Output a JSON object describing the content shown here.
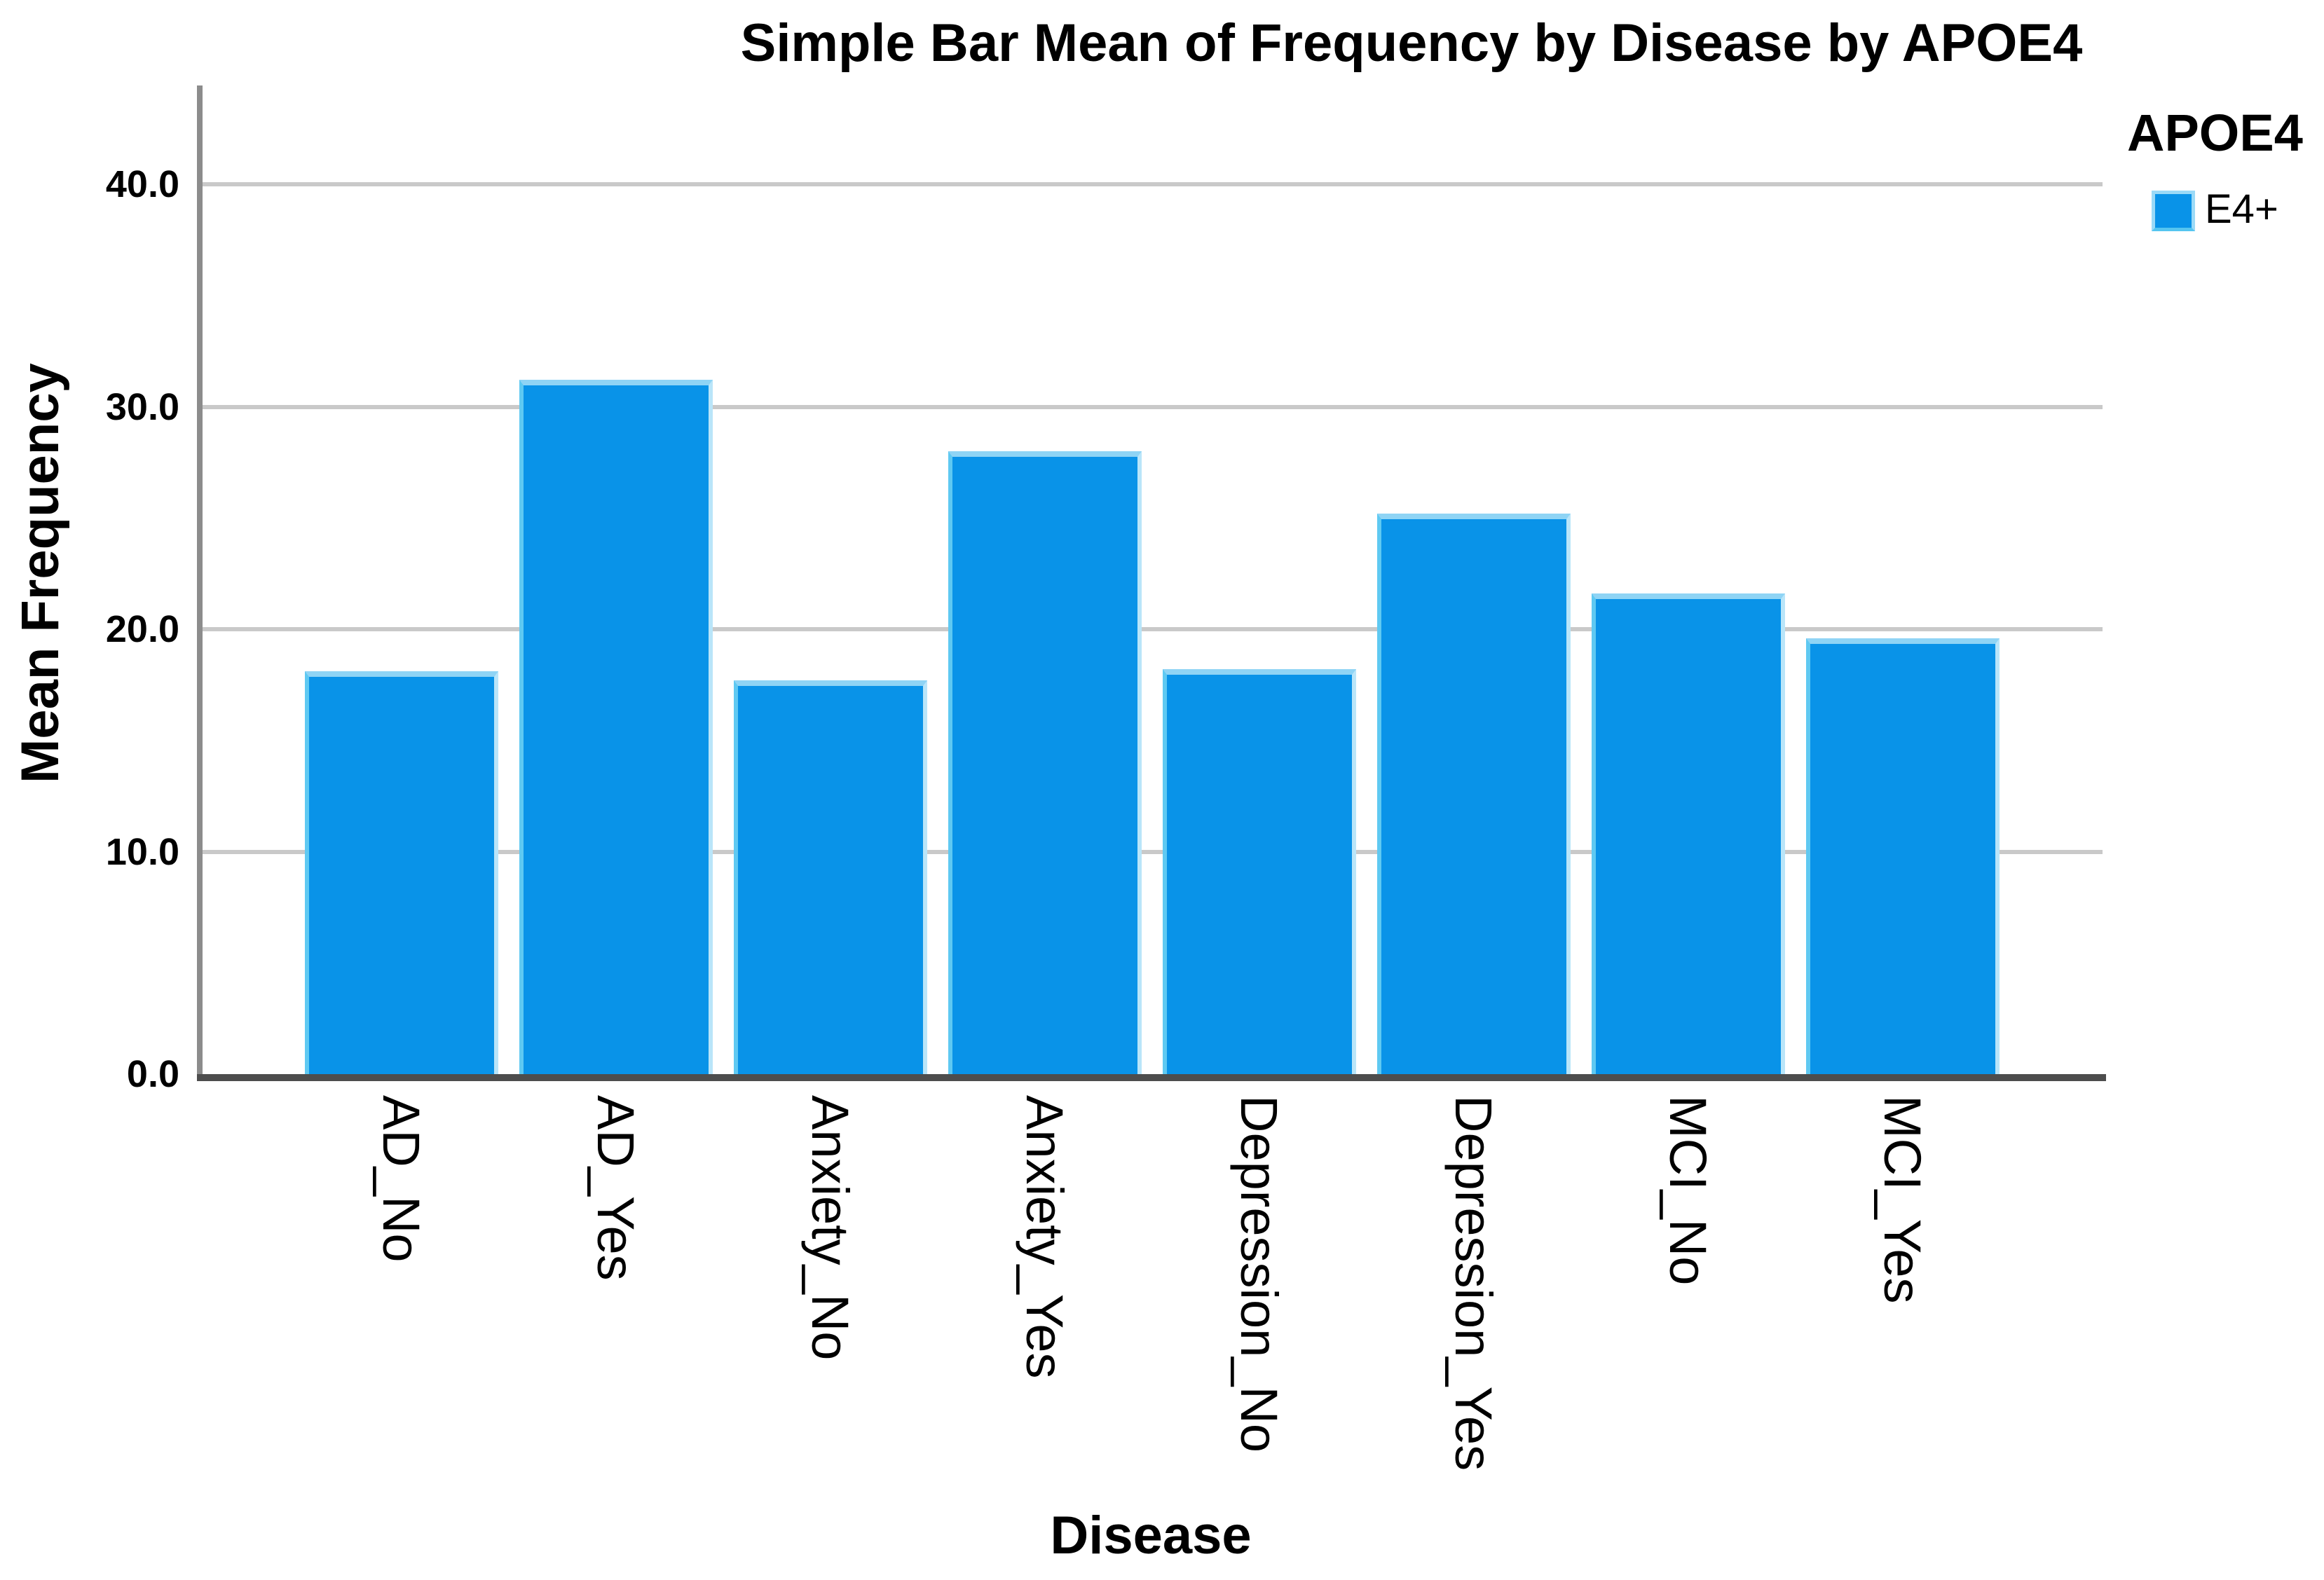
{
  "title": "Simple Bar Mean of Frequency by Disease by APOE4",
  "axes": {
    "x_label": "Disease",
    "y_label": "Mean Frequency",
    "y_tick_labels": [
      "0.0",
      "10.0",
      "20.0",
      "30.0",
      "40.0"
    ]
  },
  "legend": {
    "title": "APOE4",
    "items": [
      {
        "label": "E4+",
        "color": "#0993e8"
      }
    ]
  },
  "colors": {
    "bar_fill": "#0993e8",
    "bar_top_edge": "#8fd4f5",
    "bar_left_edge": "#5fc9f2",
    "bar_right_edge": "#b9e5f9",
    "bar_bottom_edge": "#0a84d0",
    "gridline": "#c9c9c9",
    "y_axis_line": "#8c8c8c",
    "x_axis_line": "#4d4d4d",
    "text": "#000000",
    "background": "#ffffff"
  },
  "chart_data": {
    "type": "bar",
    "title": "Simple Bar Mean of Frequency by Disease by APOE4",
    "xlabel": "Disease",
    "ylabel": "Mean Frequency",
    "categories": [
      "AD_No",
      "AD_Yes",
      "Anxiety_No",
      "Anxiety_Yes",
      "Depression_No",
      "Depression_Yes",
      "MCI_No",
      "MCI_Yes"
    ],
    "series": [
      {
        "name": "E4+",
        "values": [
          18.1,
          31.2,
          17.7,
          28.0,
          18.2,
          25.2,
          21.6,
          19.6
        ]
      }
    ],
    "y_ticks": [
      0,
      10,
      20,
      30,
      40
    ],
    "ylim": [
      0,
      44.5
    ],
    "grid": "horizontal-only",
    "legend_position": "top-right",
    "bar_color": "#0993e8",
    "x_label_rotation_deg": 90,
    "notes": "single series simple bar chart of means"
  }
}
